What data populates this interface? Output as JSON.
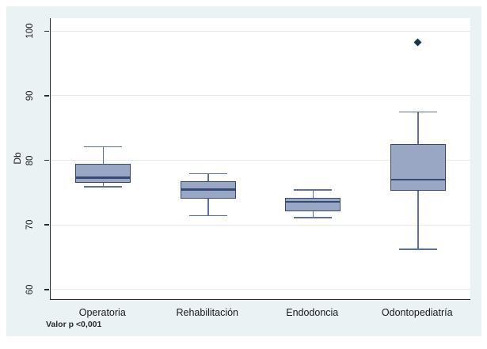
{
  "figure": {
    "type_label": "stata-box-plot"
  },
  "chart_data": {
    "type": "box",
    "title": "",
    "ylabel": "Db",
    "ylim": [
      58.5,
      102
    ],
    "yticks": [
      60,
      70,
      80,
      90,
      100
    ],
    "grid": true,
    "legend": "none",
    "note": "Valor p <0,001",
    "categories": [
      "Operatoria",
      "Rehabilitación",
      "Endodoncia",
      "Odontopediatría"
    ],
    "series": [
      {
        "name": "Operatoria",
        "whisker_low": 75.9,
        "q1": 76.5,
        "median": 77.3,
        "q3": 79.4,
        "whisker_high": 82.1,
        "outliers": []
      },
      {
        "name": "Rehabilitación",
        "whisker_low": 71.4,
        "q1": 74.1,
        "median": 75.5,
        "q3": 76.8,
        "whisker_high": 77.9,
        "outliers": []
      },
      {
        "name": "Endodoncia",
        "whisker_low": 71.1,
        "q1": 72.1,
        "median": 73.6,
        "q3": 74.2,
        "whisker_high": 75.4,
        "outliers": []
      },
      {
        "name": "Odontopediatría",
        "whisker_low": 66.2,
        "q1": 75.3,
        "median": 77.0,
        "q3": 82.5,
        "whisker_high": 87.5,
        "outliers": [
          98.3
        ]
      }
    ],
    "colors": {
      "figure_background": "#eaf2f3",
      "plot_background": "#ffffff",
      "gridline": "#e2ecee",
      "axis": "#2b2b2b",
      "box_fill": "#9aa7c4",
      "box_border": "#344a74",
      "median": "#344a74",
      "whisker": "#5d7195",
      "outlier": "#1b3352",
      "text": "#1a1a1a"
    }
  }
}
